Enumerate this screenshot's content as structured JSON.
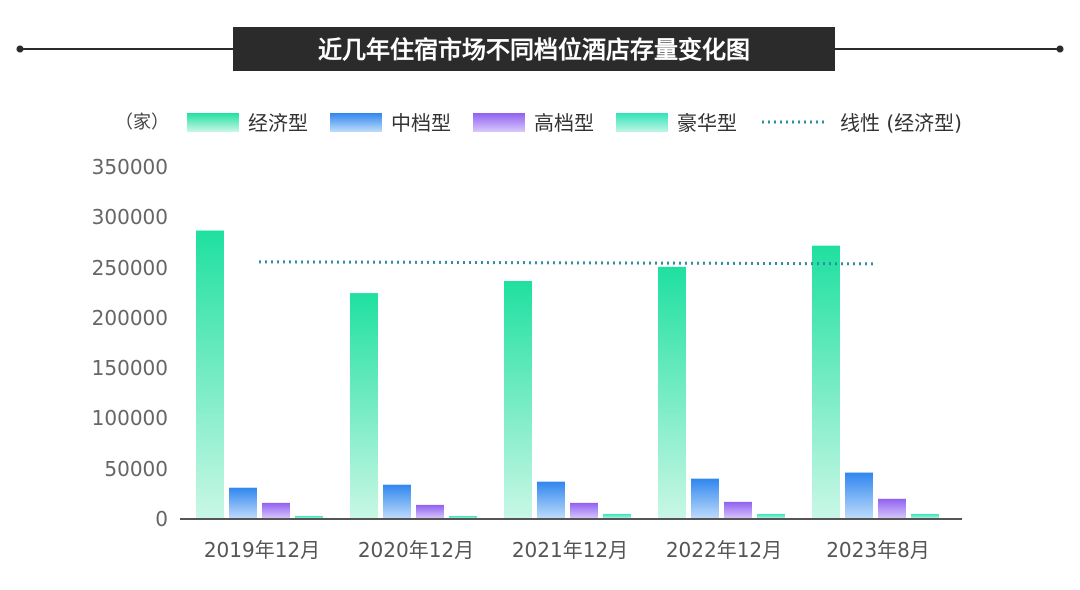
{
  "title": "近几年住宿市场不同档位酒店存量变化图",
  "unit_label": "（家）",
  "colors": {
    "economy": "#27e0a6",
    "midscale": "#3d8ff0",
    "upscale": "#9a6cf0",
    "luxury": "#2fe3b7",
    "trend": "#2e8f9f",
    "title_bg": "#2b2b2b"
  },
  "chart_data": {
    "type": "bar",
    "categories": [
      "2019年12月",
      "2020年12月",
      "2021年12月",
      "2022年12月",
      "2023年8月"
    ],
    "series": [
      {
        "name": "经济型",
        "values": [
          286000,
          224000,
          236000,
          250000,
          271000
        ]
      },
      {
        "name": "中档型",
        "values": [
          31000,
          34000,
          37000,
          40000,
          46000
        ]
      },
      {
        "name": "高档型",
        "values": [
          16000,
          14000,
          16000,
          17000,
          20000
        ]
      },
      {
        "name": "豪华型",
        "values": [
          3000,
          3000,
          5000,
          5000,
          5000
        ]
      }
    ],
    "trendline": {
      "name": "线性 (经济型)",
      "start": 255000,
      "end": 253000
    },
    "ylim": [
      0,
      350000
    ],
    "yticks": [
      "0",
      "50000",
      "100000",
      "150000",
      "200000",
      "250000",
      "300000",
      "350000"
    ],
    "legend_position": "top"
  }
}
